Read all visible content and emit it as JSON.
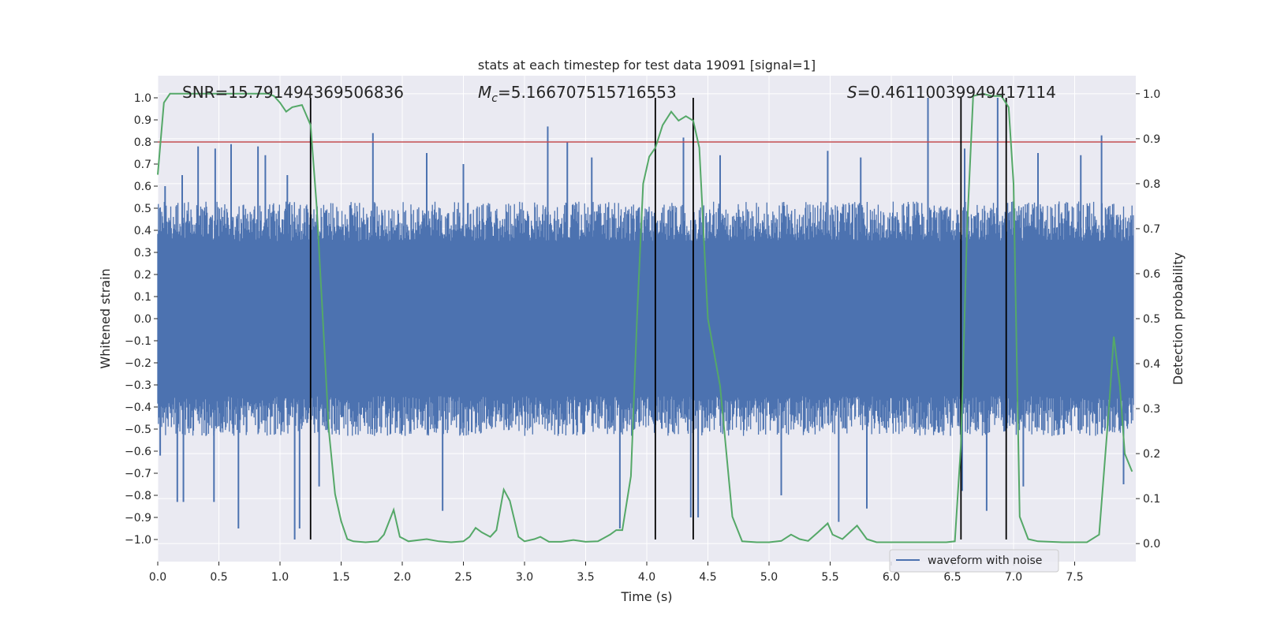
{
  "chart_data": {
    "type": "line",
    "title": "stats at each timestep for test data 19091 [signal=1]",
    "xlabel": "Time (s)",
    "ylabel": "Whitened strain",
    "ylabel_right": "Detection probability",
    "xlim": [
      0.0,
      8.0
    ],
    "ylim": [
      -1.1,
      1.1
    ],
    "ylim_right": [
      -0.04,
      1.04
    ],
    "x_ticks": [
      0.0,
      0.5,
      1.0,
      1.5,
      2.0,
      2.5,
      3.0,
      3.5,
      4.0,
      4.5,
      5.0,
      5.5,
      6.0,
      6.5,
      7.0,
      7.5
    ],
    "x_tick_labels": [
      "0.0",
      "0.5",
      "1.0",
      "1.5",
      "2.0",
      "2.5",
      "3.0",
      "3.5",
      "4.0",
      "4.5",
      "5.0",
      "5.5",
      "6.0",
      "6.5",
      "7.0",
      "7.5"
    ],
    "y_ticks": [
      1.0,
      0.9,
      0.8,
      0.7,
      0.6,
      0.5,
      0.4,
      0.3,
      0.2,
      0.1,
      0.0,
      -0.1,
      -0.2,
      -0.3,
      -0.4,
      -0.5,
      -0.6,
      -0.7,
      -0.8,
      -0.9,
      -1.0
    ],
    "y_tick_labels": [
      "1.0",
      "0.9",
      "0.8",
      "0.7",
      "0.6",
      "0.5",
      "0.4",
      "0.3",
      "0.2",
      "0.1",
      "0.0",
      "−0.1",
      "−0.2",
      "−0.3",
      "−0.4",
      "−0.5",
      "−0.6",
      "−0.7",
      "−0.8",
      "−0.9",
      "−1.0"
    ],
    "y_right_ticks": [
      1.0,
      0.9,
      0.8,
      0.7,
      0.6,
      0.5,
      0.4,
      0.3,
      0.2,
      0.1,
      0.0
    ],
    "y_right_tick_labels": [
      "1.0",
      "0.9",
      "0.8",
      "0.7",
      "0.6",
      "0.5",
      "0.4",
      "0.3",
      "0.2",
      "0.1",
      "0.0"
    ],
    "grid": true,
    "annotations": {
      "snr": "SNR=15.791494369506836",
      "mc_symbol": "M",
      "mc_sub": "c",
      "mc_value": "=5.166707515716553",
      "s_symbol": "S",
      "s_value": "=0.46110039949417114"
    },
    "threshold_line": {
      "y": 0.8,
      "color": "#c44e52"
    },
    "vertical_lines": [
      1.25,
      4.07,
      4.38,
      6.57,
      6.94
    ],
    "series": [
      {
        "name": "waveform with noise",
        "axis": "left",
        "color": "#4c72b0",
        "style": "noise-band",
        "duration": 7.98,
        "envelope_base": 0.45,
        "spikes_up": [
          [
            0.06,
            0.6
          ],
          [
            0.2,
            0.65
          ],
          [
            0.33,
            0.78
          ],
          [
            0.47,
            0.77
          ],
          [
            0.6,
            0.79
          ],
          [
            0.82,
            0.78
          ],
          [
            0.88,
            0.74
          ],
          [
            1.06,
            0.65
          ],
          [
            1.76,
            0.84
          ],
          [
            2.2,
            0.75
          ],
          [
            2.5,
            0.7
          ],
          [
            3.19,
            0.87
          ],
          [
            3.35,
            0.8
          ],
          [
            3.55,
            0.73
          ],
          [
            4.3,
            0.82
          ],
          [
            4.6,
            0.74
          ],
          [
            5.48,
            0.76
          ],
          [
            5.75,
            0.73
          ],
          [
            6.3,
            1.0
          ],
          [
            6.6,
            0.77
          ],
          [
            6.87,
            1.0
          ],
          [
            7.2,
            0.75
          ],
          [
            7.55,
            0.74
          ],
          [
            7.72,
            0.83
          ]
        ],
        "spikes_down": [
          [
            0.02,
            -0.62
          ],
          [
            0.16,
            -0.83
          ],
          [
            0.21,
            -0.83
          ],
          [
            0.46,
            -0.83
          ],
          [
            0.66,
            -0.95
          ],
          [
            1.12,
            -1.0
          ],
          [
            1.16,
            -0.95
          ],
          [
            1.32,
            -0.76
          ],
          [
            2.33,
            -0.87
          ],
          [
            3.78,
            -0.95
          ],
          [
            4.36,
            -0.9
          ],
          [
            4.42,
            -0.9
          ],
          [
            5.1,
            -0.8
          ],
          [
            5.57,
            -0.92
          ],
          [
            5.8,
            -0.86
          ],
          [
            6.58,
            -0.78
          ],
          [
            6.78,
            -0.87
          ],
          [
            7.08,
            -0.76
          ],
          [
            7.9,
            -0.75
          ]
        ],
        "legend": "waveform with noise"
      },
      {
        "name": "Detection probability",
        "axis": "right",
        "color": "#55a868",
        "points": [
          [
            0.0,
            0.82
          ],
          [
            0.05,
            0.98
          ],
          [
            0.1,
            1.0
          ],
          [
            0.2,
            1.0
          ],
          [
            0.4,
            1.0
          ],
          [
            0.6,
            1.0
          ],
          [
            0.8,
            1.0
          ],
          [
            0.9,
            1.0
          ],
          [
            0.95,
            0.995
          ],
          [
            1.0,
            0.98
          ],
          [
            1.05,
            0.96
          ],
          [
            1.1,
            0.97
          ],
          [
            1.18,
            0.975
          ],
          [
            1.25,
            0.93
          ],
          [
            1.3,
            0.75
          ],
          [
            1.35,
            0.5
          ],
          [
            1.4,
            0.25
          ],
          [
            1.45,
            0.11
          ],
          [
            1.5,
            0.05
          ],
          [
            1.55,
            0.01
          ],
          [
            1.6,
            0.005
          ],
          [
            1.7,
            0.003
          ],
          [
            1.8,
            0.005
          ],
          [
            1.85,
            0.02
          ],
          [
            1.93,
            0.075
          ],
          [
            1.98,
            0.015
          ],
          [
            2.05,
            0.005
          ],
          [
            2.2,
            0.01
          ],
          [
            2.3,
            0.005
          ],
          [
            2.4,
            0.003
          ],
          [
            2.5,
            0.005
          ],
          [
            2.55,
            0.015
          ],
          [
            2.6,
            0.035
          ],
          [
            2.65,
            0.025
          ],
          [
            2.72,
            0.015
          ],
          [
            2.77,
            0.03
          ],
          [
            2.83,
            0.12
          ],
          [
            2.88,
            0.095
          ],
          [
            2.95,
            0.015
          ],
          [
            3.0,
            0.005
          ],
          [
            3.08,
            0.01
          ],
          [
            3.13,
            0.015
          ],
          [
            3.2,
            0.004
          ],
          [
            3.3,
            0.004
          ],
          [
            3.4,
            0.008
          ],
          [
            3.5,
            0.004
          ],
          [
            3.6,
            0.005
          ],
          [
            3.7,
            0.02
          ],
          [
            3.75,
            0.03
          ],
          [
            3.8,
            0.03
          ],
          [
            3.87,
            0.15
          ],
          [
            3.92,
            0.5
          ],
          [
            3.97,
            0.8
          ],
          [
            4.02,
            0.86
          ],
          [
            4.07,
            0.88
          ],
          [
            4.13,
            0.93
          ],
          [
            4.2,
            0.96
          ],
          [
            4.26,
            0.94
          ],
          [
            4.32,
            0.95
          ],
          [
            4.38,
            0.94
          ],
          [
            4.43,
            0.88
          ],
          [
            4.5,
            0.5
          ],
          [
            4.6,
            0.35
          ],
          [
            4.7,
            0.06
          ],
          [
            4.78,
            0.005
          ],
          [
            4.9,
            0.003
          ],
          [
            5.0,
            0.003
          ],
          [
            5.1,
            0.006
          ],
          [
            5.18,
            0.02
          ],
          [
            5.25,
            0.01
          ],
          [
            5.32,
            0.006
          ],
          [
            5.4,
            0.025
          ],
          [
            5.48,
            0.045
          ],
          [
            5.52,
            0.02
          ],
          [
            5.6,
            0.01
          ],
          [
            5.66,
            0.025
          ],
          [
            5.72,
            0.04
          ],
          [
            5.8,
            0.01
          ],
          [
            5.88,
            0.003
          ],
          [
            6.0,
            0.003
          ],
          [
            6.15,
            0.003
          ],
          [
            6.3,
            0.003
          ],
          [
            6.45,
            0.003
          ],
          [
            6.52,
            0.005
          ],
          [
            6.57,
            0.22
          ],
          [
            6.62,
            0.7
          ],
          [
            6.67,
            0.995
          ],
          [
            6.75,
            1.0
          ],
          [
            6.82,
            0.995
          ],
          [
            6.9,
            0.995
          ],
          [
            6.96,
            0.97
          ],
          [
            7.0,
            0.8
          ],
          [
            7.05,
            0.06
          ],
          [
            7.12,
            0.01
          ],
          [
            7.2,
            0.005
          ],
          [
            7.4,
            0.003
          ],
          [
            7.6,
            0.003
          ],
          [
            7.7,
            0.02
          ],
          [
            7.78,
            0.3
          ],
          [
            7.82,
            0.46
          ],
          [
            7.87,
            0.35
          ],
          [
            7.91,
            0.2
          ],
          [
            7.97,
            0.16
          ]
        ]
      }
    ]
  }
}
